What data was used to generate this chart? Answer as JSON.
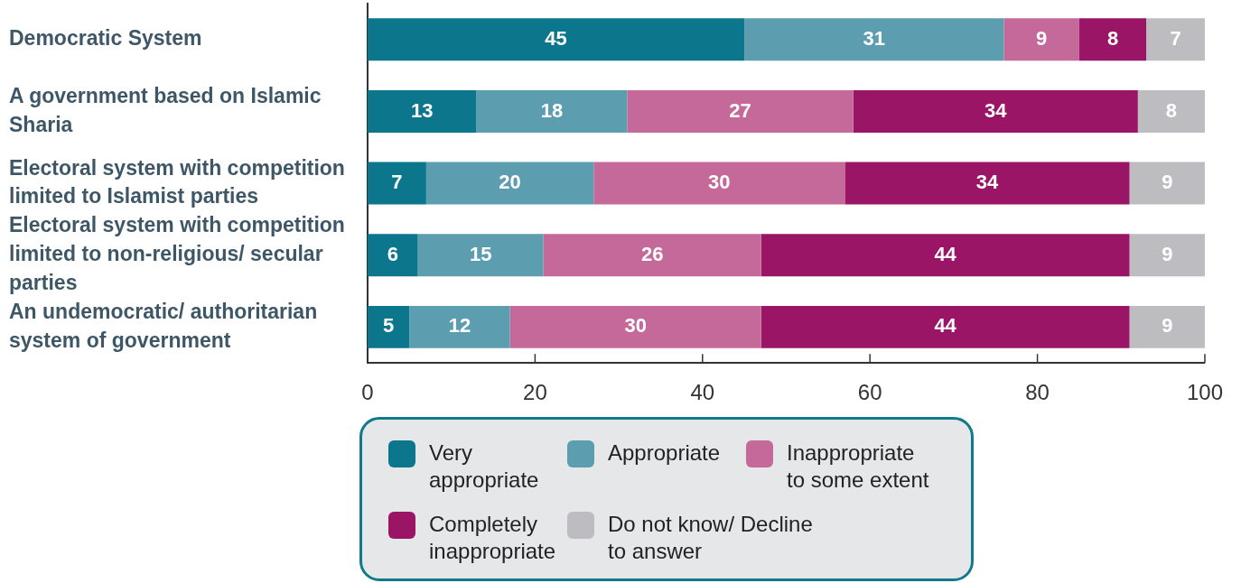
{
  "chart_data": {
    "type": "bar",
    "orientation": "horizontal",
    "stacked": true,
    "categories": [
      "Democratic System",
      "A government based on Islamic Sharia",
      "Electoral system with competition limited to Islamist parties",
      "Electoral system with competition limited to non-religious/ secular parties",
      "An undemocratic/ authoritarian system of government"
    ],
    "series": [
      {
        "name": "Very appropriate",
        "color": "#0b768c",
        "values": [
          45,
          13,
          7,
          6,
          5
        ]
      },
      {
        "name": "Appropriate",
        "color": "#5c9eb0",
        "values": [
          31,
          18,
          20,
          15,
          12
        ]
      },
      {
        "name": "Inappropriate to some extent",
        "color": "#c4699a",
        "values": [
          9,
          27,
          30,
          26,
          30
        ]
      },
      {
        "name": "Completely inappropriate",
        "color": "#9b1566",
        "values": [
          8,
          34,
          34,
          44,
          44
        ]
      },
      {
        "name": "Do not know/ Decline to answer",
        "color": "#bdbdc1",
        "values": [
          7,
          8,
          9,
          9,
          9
        ]
      }
    ],
    "xlim": [
      0,
      100
    ],
    "xticks": [
      0,
      20,
      40,
      60,
      80,
      100
    ],
    "data_labels": true,
    "legend": "bottom"
  }
}
